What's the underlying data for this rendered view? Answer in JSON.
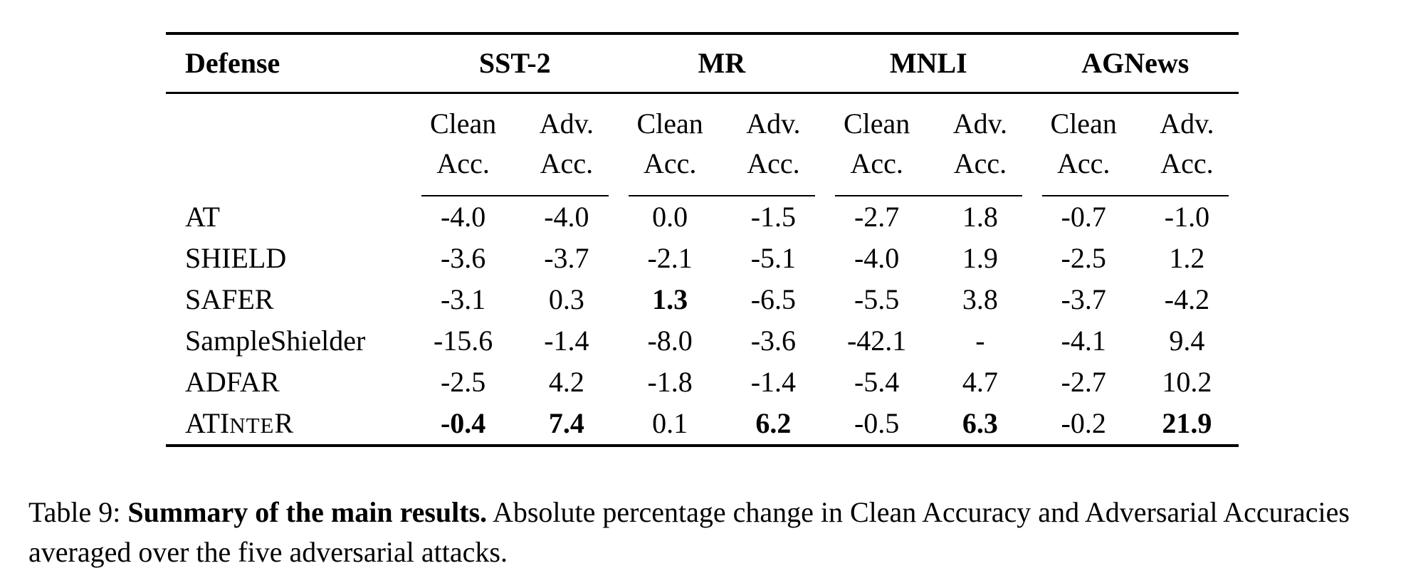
{
  "table": {
    "title_row": {
      "defense": "Defense",
      "groups": [
        "SST-2",
        "MR",
        "MNLI",
        "AGNews"
      ]
    },
    "subheader": {
      "clean": [
        "Clean",
        "Acc."
      ],
      "adv": [
        "Adv.",
        "Acc."
      ]
    },
    "rows": [
      {
        "defense": "AT",
        "values": [
          "-4.0",
          "-4.0",
          "0.0",
          "-1.5",
          "-2.7",
          "1.8",
          "-0.7",
          "-1.0"
        ]
      },
      {
        "defense": "SHIELD",
        "values": [
          "-3.6",
          "-3.7",
          "-2.1",
          "-5.1",
          "-4.0",
          "1.9",
          "-2.5",
          "1.2"
        ]
      },
      {
        "defense": "SAFER",
        "values": [
          "-3.1",
          "0.3",
          "1.3",
          "-6.5",
          "-5.5",
          "3.8",
          "-3.7",
          "-4.2"
        ]
      },
      {
        "defense": "SampleShielder",
        "values": [
          "-15.6",
          "-1.4",
          "-8.0",
          "-3.6",
          "-42.1",
          "-",
          "-4.1",
          "9.4"
        ]
      },
      {
        "defense": "ADFAR",
        "values": [
          "-2.5",
          "4.2",
          "-1.8",
          "-1.4",
          "-5.4",
          "4.7",
          "-2.7",
          "10.2"
        ]
      },
      {
        "defense_parts": {
          "pre": "ATI",
          "small": "NTE",
          "post": "R"
        },
        "values": [
          "-0.4",
          "7.4",
          "0.1",
          "6.2",
          "-0.5",
          "6.3",
          "-0.2",
          "21.9"
        ]
      }
    ]
  },
  "caption": {
    "prefix": "Table 9: ",
    "bold": "Summary of the main results.",
    "rest_line1": " Absolute percentage change in Clean Accuracy and Adversarial Accuracies",
    "rest_line2": "averaged over the five adversarial attacks."
  }
}
